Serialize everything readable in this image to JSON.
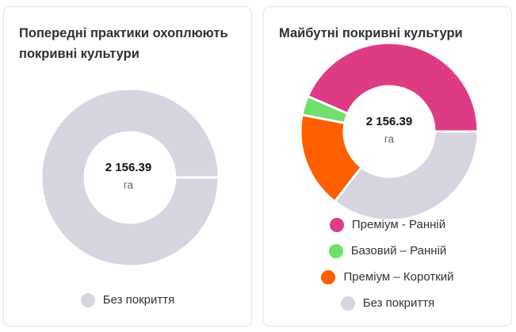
{
  "left_card": {
    "title": "Попередні практики охоплюють покривні культури",
    "center_value": "2 156.39",
    "center_unit": "га",
    "legend": [
      {
        "label": "Без покриття",
        "color": "#d4d5df"
      }
    ]
  },
  "right_card": {
    "title": "Майбутні покривні культури",
    "center_value": "2 156.39",
    "center_unit": "га",
    "legend": [
      {
        "label": "Преміум - Ранній",
        "color": "#dd3c84"
      },
      {
        "label": "Базовий – Ранній",
        "color": "#72de6c"
      },
      {
        "label": "Преміум – Короткий",
        "color": "#ff5f00"
      },
      {
        "label": "Без покриття",
        "color": "#d4d5df"
      }
    ]
  },
  "chart_data": [
    {
      "type": "pie",
      "title": "Попередні практики охоплюють покривні культури",
      "total": 2156.39,
      "unit": "га",
      "categories": [
        "Без покриття"
      ],
      "values": [
        100
      ],
      "colors": [
        "#d4d5df"
      ],
      "legend_position": "bottom"
    },
    {
      "type": "pie",
      "title": "Майбутні покривні культури",
      "total": 2156.39,
      "unit": "га",
      "categories": [
        "Преміум - Ранній",
        "Базовий – Ранній",
        "Преміум – Короткий",
        "Без покриття"
      ],
      "values": [
        43.5,
        3.5,
        17.5,
        35.5
      ],
      "colors": [
        "#dd3c84",
        "#72de6c",
        "#ff5f00",
        "#d4d5df"
      ],
      "legend_position": "bottom"
    }
  ]
}
